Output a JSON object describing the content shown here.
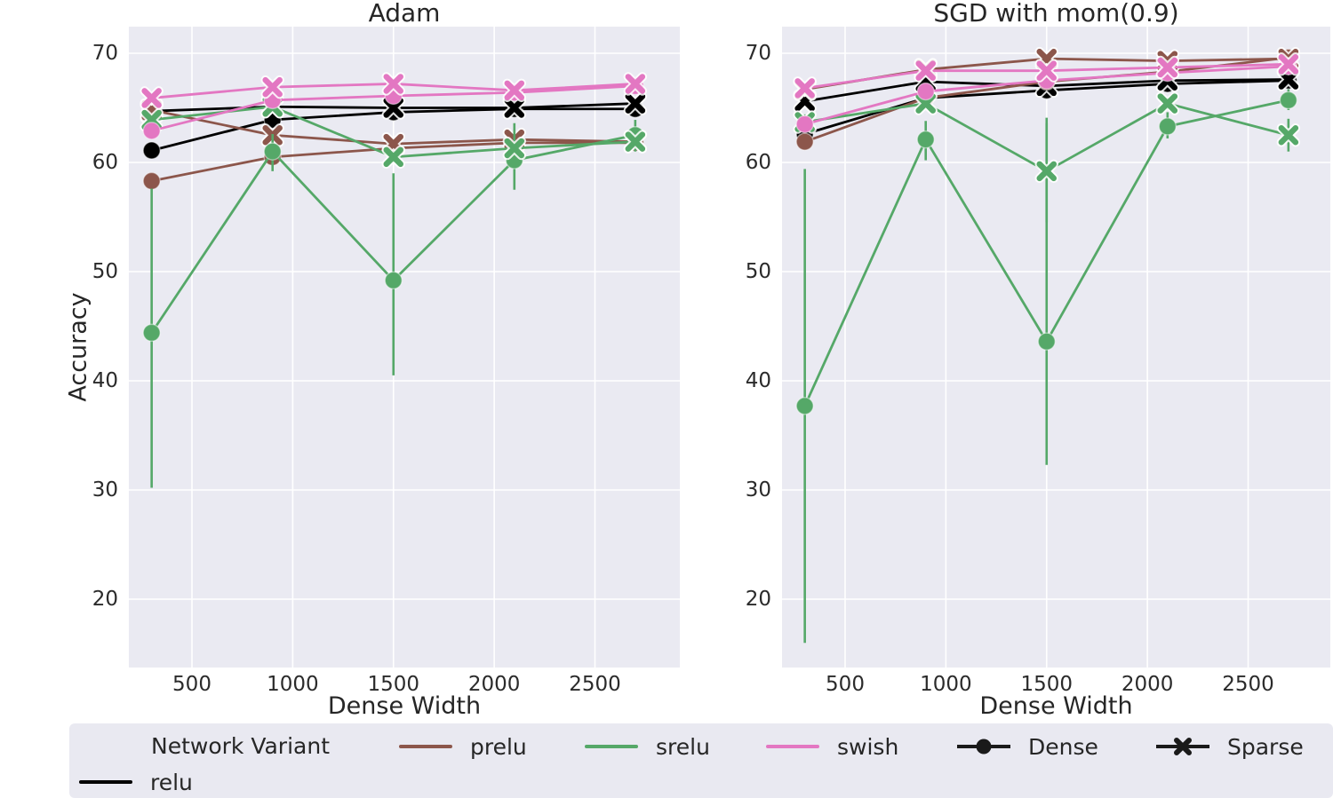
{
  "figure": {
    "ylabel": "Accuracy",
    "plot_bg": "#eaeaf2",
    "grid_color": "#ffffff",
    "legend": {
      "title": "Network Variant",
      "items": [
        {
          "label": "relu",
          "color": "#000000",
          "marker": "line"
        },
        {
          "label": "prelu",
          "color": "#8c564b",
          "marker": "line"
        },
        {
          "label": "srelu",
          "color": "#55a868",
          "marker": "line"
        },
        {
          "label": "swish",
          "color": "#e377c2",
          "marker": "line"
        },
        {
          "label": "Dense",
          "color": "#1a1a1a",
          "marker": "circle"
        },
        {
          "label": "Sparse",
          "color": "#1a1a1a",
          "marker": "x"
        }
      ]
    }
  },
  "chart_data": [
    {
      "type": "line",
      "title": "Adam",
      "xlabel": "Dense Width",
      "ylabel": "Accuracy",
      "x": [
        300,
        900,
        1500,
        2100,
        2700
      ],
      "xticks": [
        500,
        1000,
        1500,
        2000,
        2500
      ],
      "yticks": [
        70,
        60,
        50,
        40,
        30,
        20
      ],
      "xlim": [
        186,
        2920
      ],
      "ylim": [
        13.7,
        72.4
      ],
      "grid": true,
      "legend_position": "bottom",
      "series": [
        {
          "name": "relu",
          "variant": "Dense",
          "color": "#000000",
          "marker": "circle",
          "values": [
            61.1,
            63.9,
            64.6,
            64.9,
            64.9
          ],
          "err_lo": null,
          "err_hi": null
        },
        {
          "name": "relu",
          "variant": "Sparse",
          "color": "#000000",
          "marker": "x",
          "values": [
            64.7,
            65.1,
            65.0,
            65.0,
            65.4
          ],
          "err_lo": null,
          "err_hi": null
        },
        {
          "name": "prelu",
          "variant": "Dense",
          "color": "#8c564b",
          "marker": "circle",
          "values": [
            58.3,
            60.5,
            61.3,
            61.8,
            61.8
          ],
          "err_lo": null,
          "err_hi": null
        },
        {
          "name": "prelu",
          "variant": "Sparse",
          "color": "#8c564b",
          "marker": "x",
          "values": [
            64.8,
            62.5,
            61.7,
            62.1,
            61.9
          ],
          "err_lo": null,
          "err_hi": null
        },
        {
          "name": "srelu",
          "variant": "Dense",
          "color": "#55a868",
          "marker": "circle",
          "values": [
            44.4,
            61.0,
            49.2,
            60.2,
            62.5
          ],
          "err_lo": [
            30.2,
            59.2,
            40.5,
            57.5,
            61.1
          ],
          "err_hi": [
            57.6,
            62.6,
            59.0,
            63.6,
            63.9
          ]
        },
        {
          "name": "srelu",
          "variant": "Sparse",
          "color": "#55a868",
          "marker": "x",
          "values": [
            63.9,
            65.1,
            60.5,
            61.3,
            61.9
          ],
          "err_lo": [
            63.5,
            64.7,
            60.0,
            60.8,
            61.0
          ],
          "err_hi": [
            64.3,
            65.5,
            61.0,
            61.8,
            63.0
          ]
        },
        {
          "name": "swish",
          "variant": "Dense",
          "color": "#e377c2",
          "marker": "circle",
          "values": [
            62.9,
            65.7,
            66.1,
            66.4,
            67.0
          ],
          "err_lo": null,
          "err_hi": null
        },
        {
          "name": "swish",
          "variant": "Sparse",
          "color": "#e377c2",
          "marker": "x",
          "values": [
            65.9,
            66.9,
            67.2,
            66.6,
            67.2
          ],
          "err_lo": null,
          "err_hi": null
        }
      ]
    },
    {
      "type": "line",
      "title": "SGD with mom(0.9)",
      "xlabel": "Dense Width",
      "ylabel": "Accuracy",
      "x": [
        300,
        900,
        1500,
        2100,
        2700
      ],
      "xticks": [
        500,
        1000,
        1500,
        2000,
        2500
      ],
      "yticks": [
        70,
        60,
        50,
        40,
        30,
        20
      ],
      "xlim": [
        186,
        2920
      ],
      "ylim": [
        13.7,
        72.4
      ],
      "grid": true,
      "legend_position": "bottom",
      "series": [
        {
          "name": "relu",
          "variant": "Dense",
          "color": "#000000",
          "marker": "circle",
          "values": [
            62.6,
            65.9,
            66.6,
            67.2,
            67.5
          ],
          "err_lo": null,
          "err_hi": null
        },
        {
          "name": "relu",
          "variant": "Sparse",
          "color": "#000000",
          "marker": "x",
          "values": [
            65.6,
            67.4,
            67.0,
            67.5,
            67.6
          ],
          "err_lo": null,
          "err_hi": null
        },
        {
          "name": "prelu",
          "variant": "Dense",
          "color": "#8c564b",
          "marker": "circle",
          "values": [
            61.9,
            65.9,
            67.4,
            68.3,
            69.6
          ],
          "err_lo": null,
          "err_hi": null
        },
        {
          "name": "prelu",
          "variant": "Sparse",
          "color": "#8c564b",
          "marker": "x",
          "values": [
            66.7,
            68.5,
            69.5,
            69.3,
            69.5
          ],
          "err_lo": null,
          "err_hi": null
        },
        {
          "name": "srelu",
          "variant": "Dense",
          "color": "#55a868",
          "marker": "circle",
          "values": [
            37.7,
            62.1,
            43.6,
            63.3,
            65.7
          ],
          "err_lo": [
            16.0,
            60.2,
            32.3,
            62.2,
            64.8
          ],
          "err_hi": [
            59.4,
            63.8,
            63.6,
            64.6,
            66.7
          ]
        },
        {
          "name": "srelu",
          "variant": "Sparse",
          "color": "#55a868",
          "marker": "x",
          "values": [
            63.7,
            65.4,
            59.2,
            65.4,
            62.5
          ],
          "err_lo": [
            63.0,
            65.0,
            54.5,
            64.9,
            61.0
          ],
          "err_hi": [
            64.4,
            65.8,
            64.1,
            65.9,
            64.0
          ]
        },
        {
          "name": "swish",
          "variant": "Dense",
          "color": "#e377c2",
          "marker": "circle",
          "values": [
            63.5,
            66.5,
            67.5,
            68.2,
            68.8
          ],
          "err_lo": null,
          "err_hi": null
        },
        {
          "name": "swish",
          "variant": "Sparse",
          "color": "#e377c2",
          "marker": "x",
          "values": [
            66.8,
            68.4,
            68.4,
            68.7,
            69.0
          ],
          "err_lo": null,
          "err_hi": null
        }
      ]
    }
  ]
}
